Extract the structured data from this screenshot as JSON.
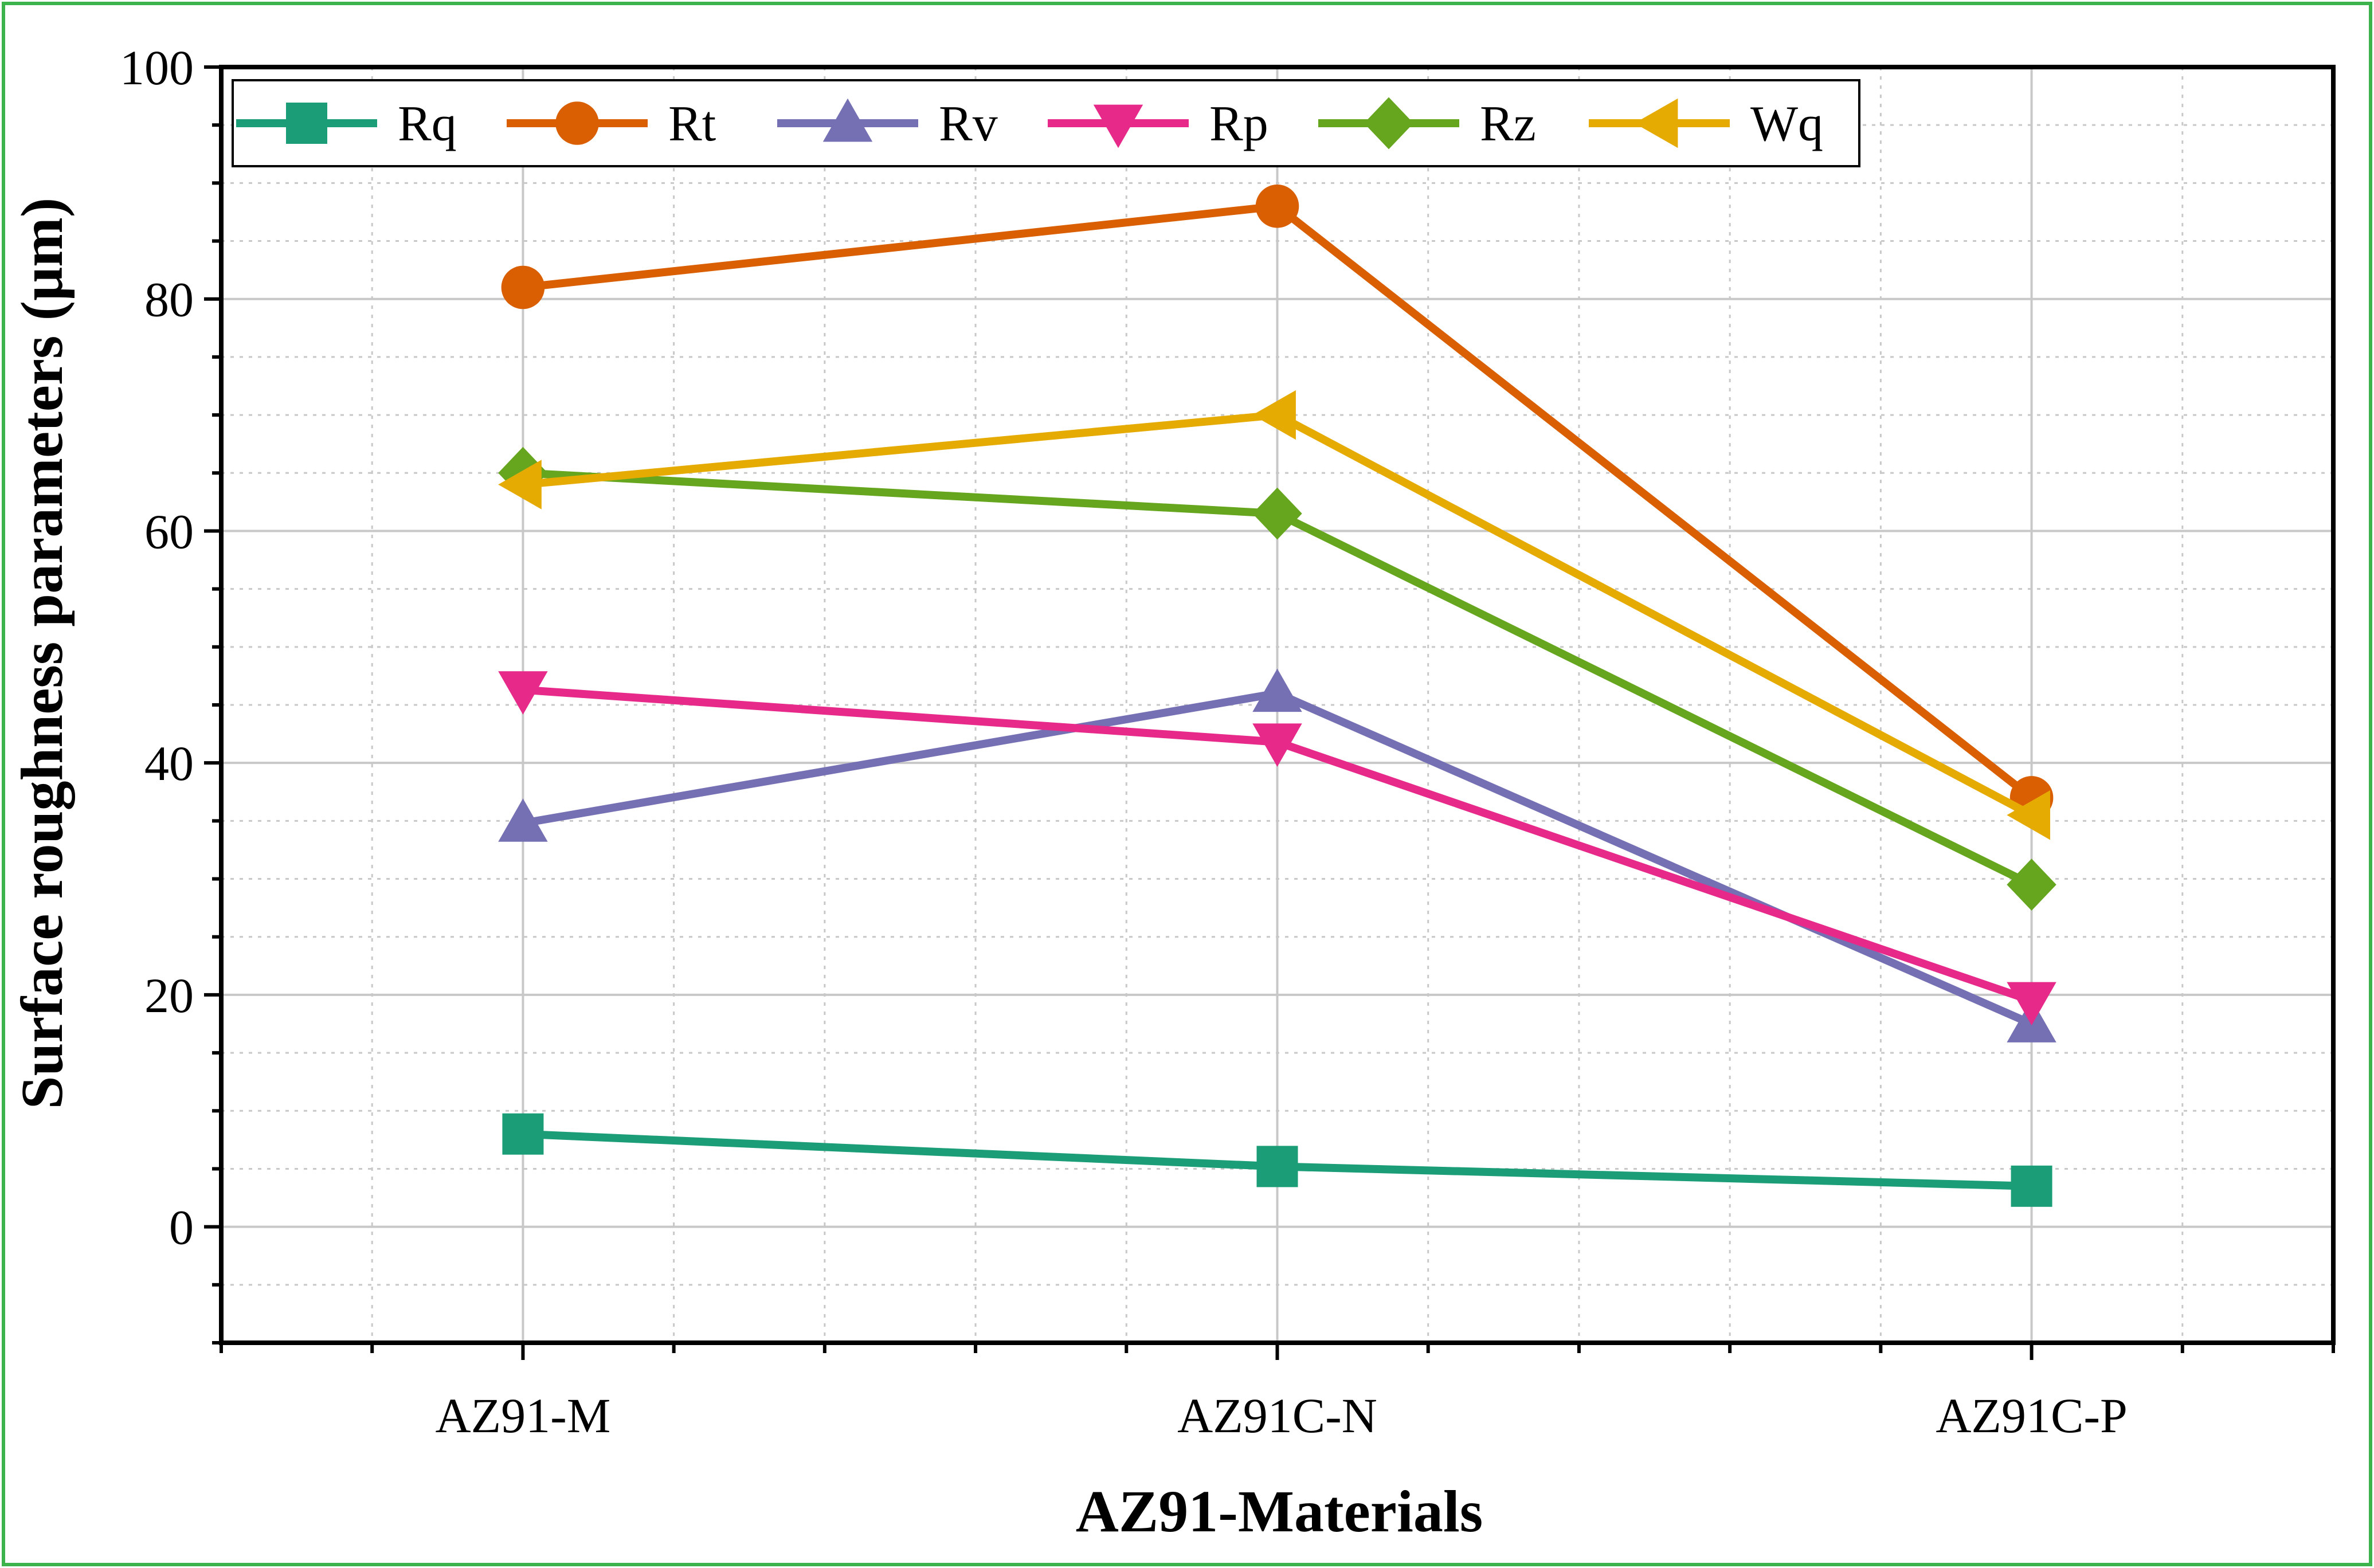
{
  "chart_data": {
    "type": "line",
    "title": "",
    "xlabel": "AZ91-Materials",
    "ylabel": "Surface roughness parameters (μm)",
    "categories": [
      "AZ91-M",
      "AZ91C-N",
      "AZ91C-P"
    ],
    "ylim": [
      -10,
      100
    ],
    "yticks": [
      0,
      20,
      40,
      60,
      80,
      100
    ],
    "grid": true,
    "legend_position": "top",
    "series": [
      {
        "name": "Rq",
        "color": "#1b9e77",
        "marker": "square",
        "values": [
          8,
          5.2,
          3.5
        ]
      },
      {
        "name": "Rt",
        "color": "#d95f02",
        "marker": "circle",
        "values": [
          81,
          88,
          37
        ]
      },
      {
        "name": "Rv",
        "color": "#7570b3",
        "marker": "triangle-up",
        "values": [
          34.8,
          46,
          17.5
        ]
      },
      {
        "name": "Rp",
        "color": "#e7298a",
        "marker": "triangle-down",
        "values": [
          46.3,
          41.8,
          19.5
        ]
      },
      {
        "name": "Rz",
        "color": "#66a61e",
        "marker": "diamond",
        "values": [
          65,
          61.5,
          29.5
        ]
      },
      {
        "name": "Wq",
        "color": "#e6ab02",
        "marker": "triangle-left",
        "values": [
          64,
          70,
          35.5
        ]
      }
    ]
  },
  "frame_color": "#3cb44b"
}
